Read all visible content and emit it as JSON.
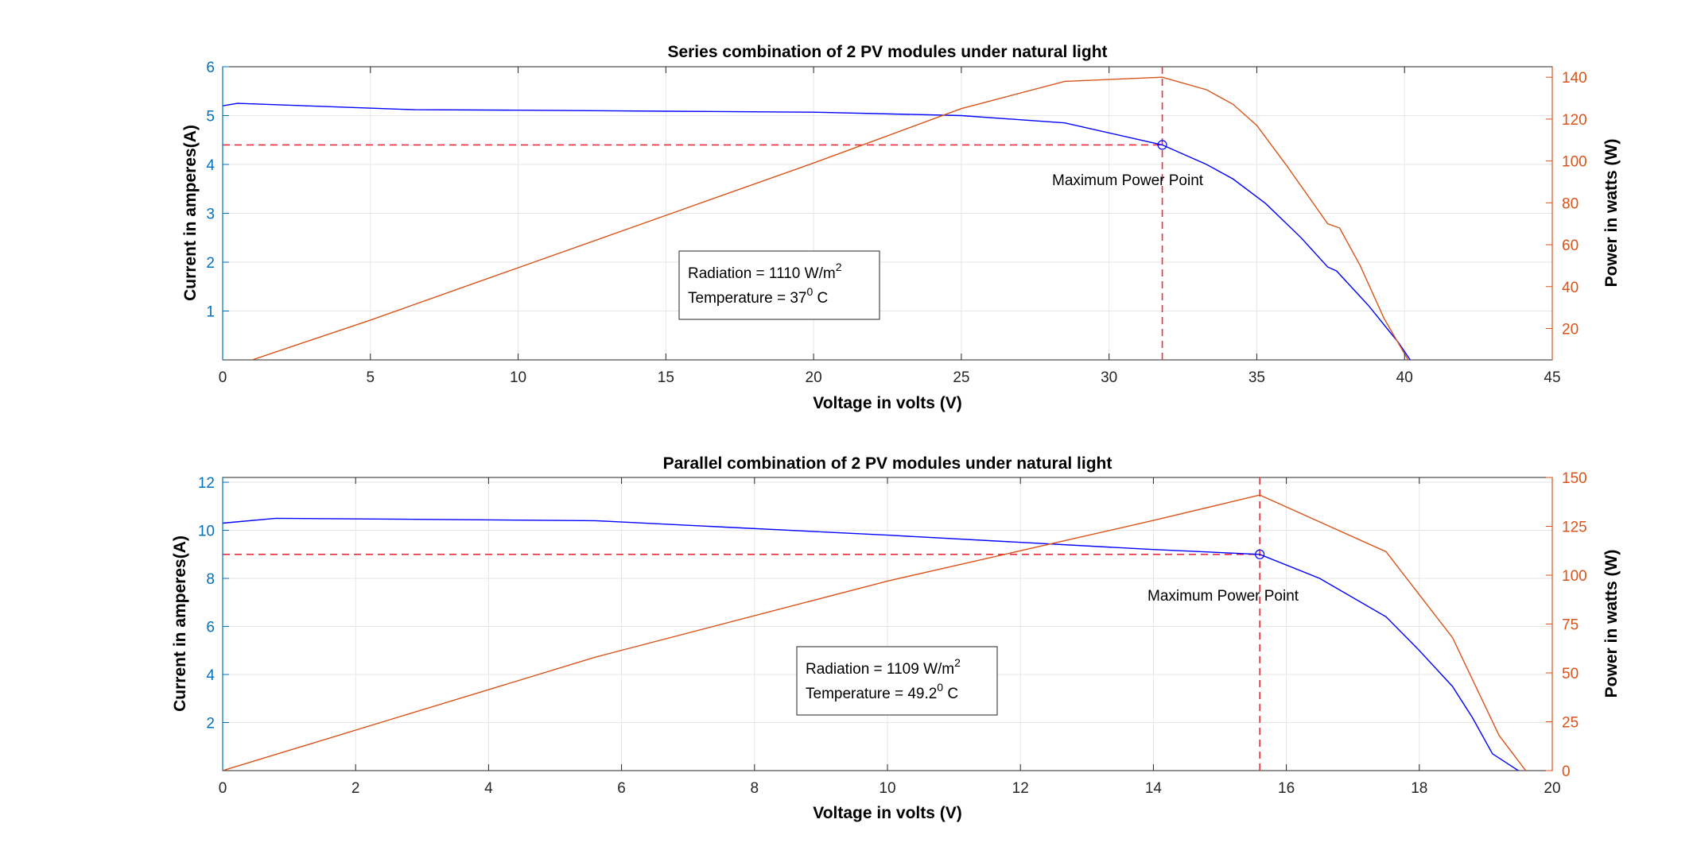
{
  "colors": {
    "current_line": "#0000FF",
    "power_line": "#D95319",
    "left_axis": "#0072BD",
    "right_axis": "#D95319",
    "mpp_dash": "#E8303A",
    "grid": "#e6e6e6"
  },
  "chart_data": [
    {
      "type": "line",
      "title": "Series combination of 2 PV modules under natural light",
      "xlabel": "Voltage in volts (V)",
      "ylabel_left": "Current in amperes(A)",
      "ylabel_right": "Power in watts (W)",
      "xlim": [
        0,
        45
      ],
      "ylim_left": [
        0,
        6
      ],
      "ylim_right": [
        5,
        145
      ],
      "x_ticks": [
        0,
        5,
        10,
        15,
        20,
        25,
        30,
        35,
        40,
        45
      ],
      "y_ticks_left": [
        1,
        2,
        3,
        4,
        5,
        6
      ],
      "y_ticks_right": [
        20,
        40,
        60,
        80,
        100,
        120,
        140
      ],
      "grid": true,
      "series": [
        {
          "axis": "left",
          "color": "#0000FF",
          "x": [
            0,
            0.5,
            6.5,
            10,
            15,
            20,
            25,
            28.5,
            31.8,
            33.3,
            34.2,
            35.3,
            36.5,
            37.4,
            37.7,
            38.8,
            39.8,
            40.3
          ],
          "y": [
            5.2,
            5.25,
            5.12,
            5.11,
            5.09,
            5.07,
            5.0,
            4.85,
            4.4,
            4.0,
            3.7,
            3.2,
            2.5,
            1.9,
            1.82,
            1.1,
            0.35,
            -0.1
          ]
        },
        {
          "axis": "right",
          "color": "#D95319",
          "x": [
            1.0,
            5,
            10,
            15,
            20,
            25,
            28.5,
            31.8,
            33.3,
            34.2,
            35.0,
            36.0,
            37.0,
            37.4,
            37.8,
            38.5,
            39.3,
            40.2
          ],
          "y": [
            5,
            24,
            49,
            74,
            99,
            125,
            138,
            140,
            134,
            127,
            117,
            98,
            78,
            70,
            68,
            50,
            25,
            3
          ]
        }
      ],
      "mpp": {
        "x": 31.8,
        "y": 4.4
      },
      "annotations": {
        "mpp_label": "Maximum Power Point",
        "radiation_text": "Radiation = 1110 W/m",
        "radiation_sup": "2",
        "temperature_text": "Temperature = 37",
        "temperature_sup": "0",
        "temperature_unit": " C"
      }
    },
    {
      "type": "line",
      "title": "Parallel combination of 2 PV modules under natural light",
      "xlabel": "Voltage in volts (V)",
      "ylabel_left": "Current in amperes(A)",
      "ylabel_right": "Power in watts (W)",
      "xlim": [
        0,
        20
      ],
      "ylim_left": [
        0,
        12.2
      ],
      "ylim_right": [
        0,
        150
      ],
      "x_ticks": [
        0,
        2,
        4,
        6,
        8,
        10,
        12,
        14,
        16,
        18,
        20
      ],
      "y_ticks_left": [
        2,
        4,
        6,
        8,
        10,
        12
      ],
      "y_ticks_right": [
        0,
        25,
        50,
        75,
        100,
        125,
        150
      ],
      "grid": true,
      "series": [
        {
          "axis": "left",
          "color": "#0000FF",
          "x": [
            0,
            0.8,
            5.6,
            10,
            14,
            15.6,
            16.5,
            17.5,
            18,
            18.5,
            18.8,
            19.1,
            19.6
          ],
          "y": [
            10.3,
            10.5,
            10.4,
            9.8,
            9.2,
            9.0,
            8.0,
            6.4,
            5.0,
            3.5,
            2.2,
            0.7,
            -0.2
          ]
        },
        {
          "axis": "right",
          "color": "#D95319",
          "x": [
            0,
            5.6,
            10,
            14,
            15.6,
            17.5,
            18.5,
            19.2,
            19.6
          ],
          "y": [
            0,
            58,
            97,
            128,
            141,
            112,
            68,
            18,
            0
          ]
        }
      ],
      "mpp": {
        "x": 15.6,
        "y": 9.0
      },
      "annotations": {
        "mpp_label": "Maximum Power Point",
        "radiation_text": "Radiation = 1109 W/m",
        "radiation_sup": "2",
        "temperature_text": "Temperature = 49.2",
        "temperature_sup": "0",
        "temperature_unit": " C"
      }
    }
  ]
}
